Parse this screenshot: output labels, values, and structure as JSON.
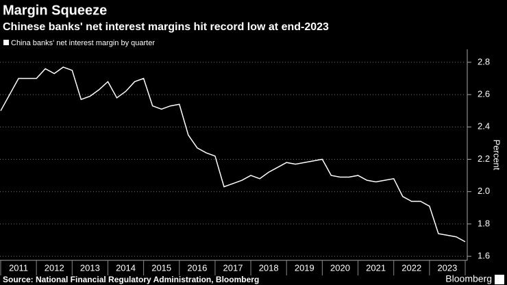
{
  "chart_data": {
    "type": "line",
    "title": "Margin Squeeze",
    "subtitle": "Chinese banks' net interest margins hit record low at end-2023",
    "y_label": "Percent",
    "source": "Source: National Financial Regulatory Administration, Bloomberg",
    "brand": "Bloomberg",
    "x": [
      2011,
      2011.5,
      2012,
      2012.25,
      2012.5,
      2012.75,
      2013,
      2013.25,
      2013.5,
      2013.75,
      2014,
      2014.25,
      2014.5,
      2014.75,
      2015,
      2015.25,
      2015.5,
      2015.75,
      2016,
      2016.25,
      2016.5,
      2016.75,
      2017,
      2017.25,
      2017.5,
      2017.75,
      2018,
      2018.25,
      2018.5,
      2018.75,
      2019,
      2019.25,
      2019.5,
      2019.75,
      2020,
      2020.25,
      2020.5,
      2020.75,
      2021,
      2021.25,
      2021.5,
      2021.75,
      2022,
      2022.25,
      2022.5,
      2022.75,
      2023,
      2023.25,
      2023.5,
      2023.75,
      2024
    ],
    "series": [
      {
        "name": "China banks' net interest margin by quarter",
        "color": "#ffffff",
        "values": [
          2.5,
          2.7,
          2.7,
          2.76,
          2.73,
          2.77,
          2.75,
          2.57,
          2.59,
          2.63,
          2.68,
          2.58,
          2.62,
          2.68,
          2.7,
          2.53,
          2.51,
          2.53,
          2.54,
          2.35,
          2.27,
          2.24,
          2.22,
          2.03,
          2.05,
          2.07,
          2.1,
          2.08,
          2.12,
          2.15,
          2.18,
          2.17,
          2.18,
          2.19,
          2.2,
          2.1,
          2.09,
          2.09,
          2.1,
          2.07,
          2.06,
          2.07,
          2.08,
          1.97,
          1.94,
          1.94,
          1.91,
          1.74,
          1.73,
          1.72,
          1.69
        ]
      }
    ],
    "xlim": [
      2011,
      2024
    ],
    "xticks": [
      2011,
      2012,
      2013,
      2014,
      2015,
      2016,
      2017,
      2018,
      2019,
      2020,
      2021,
      2022,
      2023
    ],
    "ylim": [
      1.575,
      2.88
    ],
    "yticks": [
      {
        "value": 1.6,
        "label": "1.6"
      },
      {
        "value": 1.8,
        "label": "1.8"
      },
      {
        "value": 2.0,
        "label": "2.0"
      },
      {
        "value": 2.2,
        "label": "2.2"
      },
      {
        "value": 2.4,
        "label": "2.4"
      },
      {
        "value": 2.6,
        "label": "2.6"
      },
      {
        "value": 2.8,
        "label": "2.8"
      }
    ],
    "grid": true
  }
}
